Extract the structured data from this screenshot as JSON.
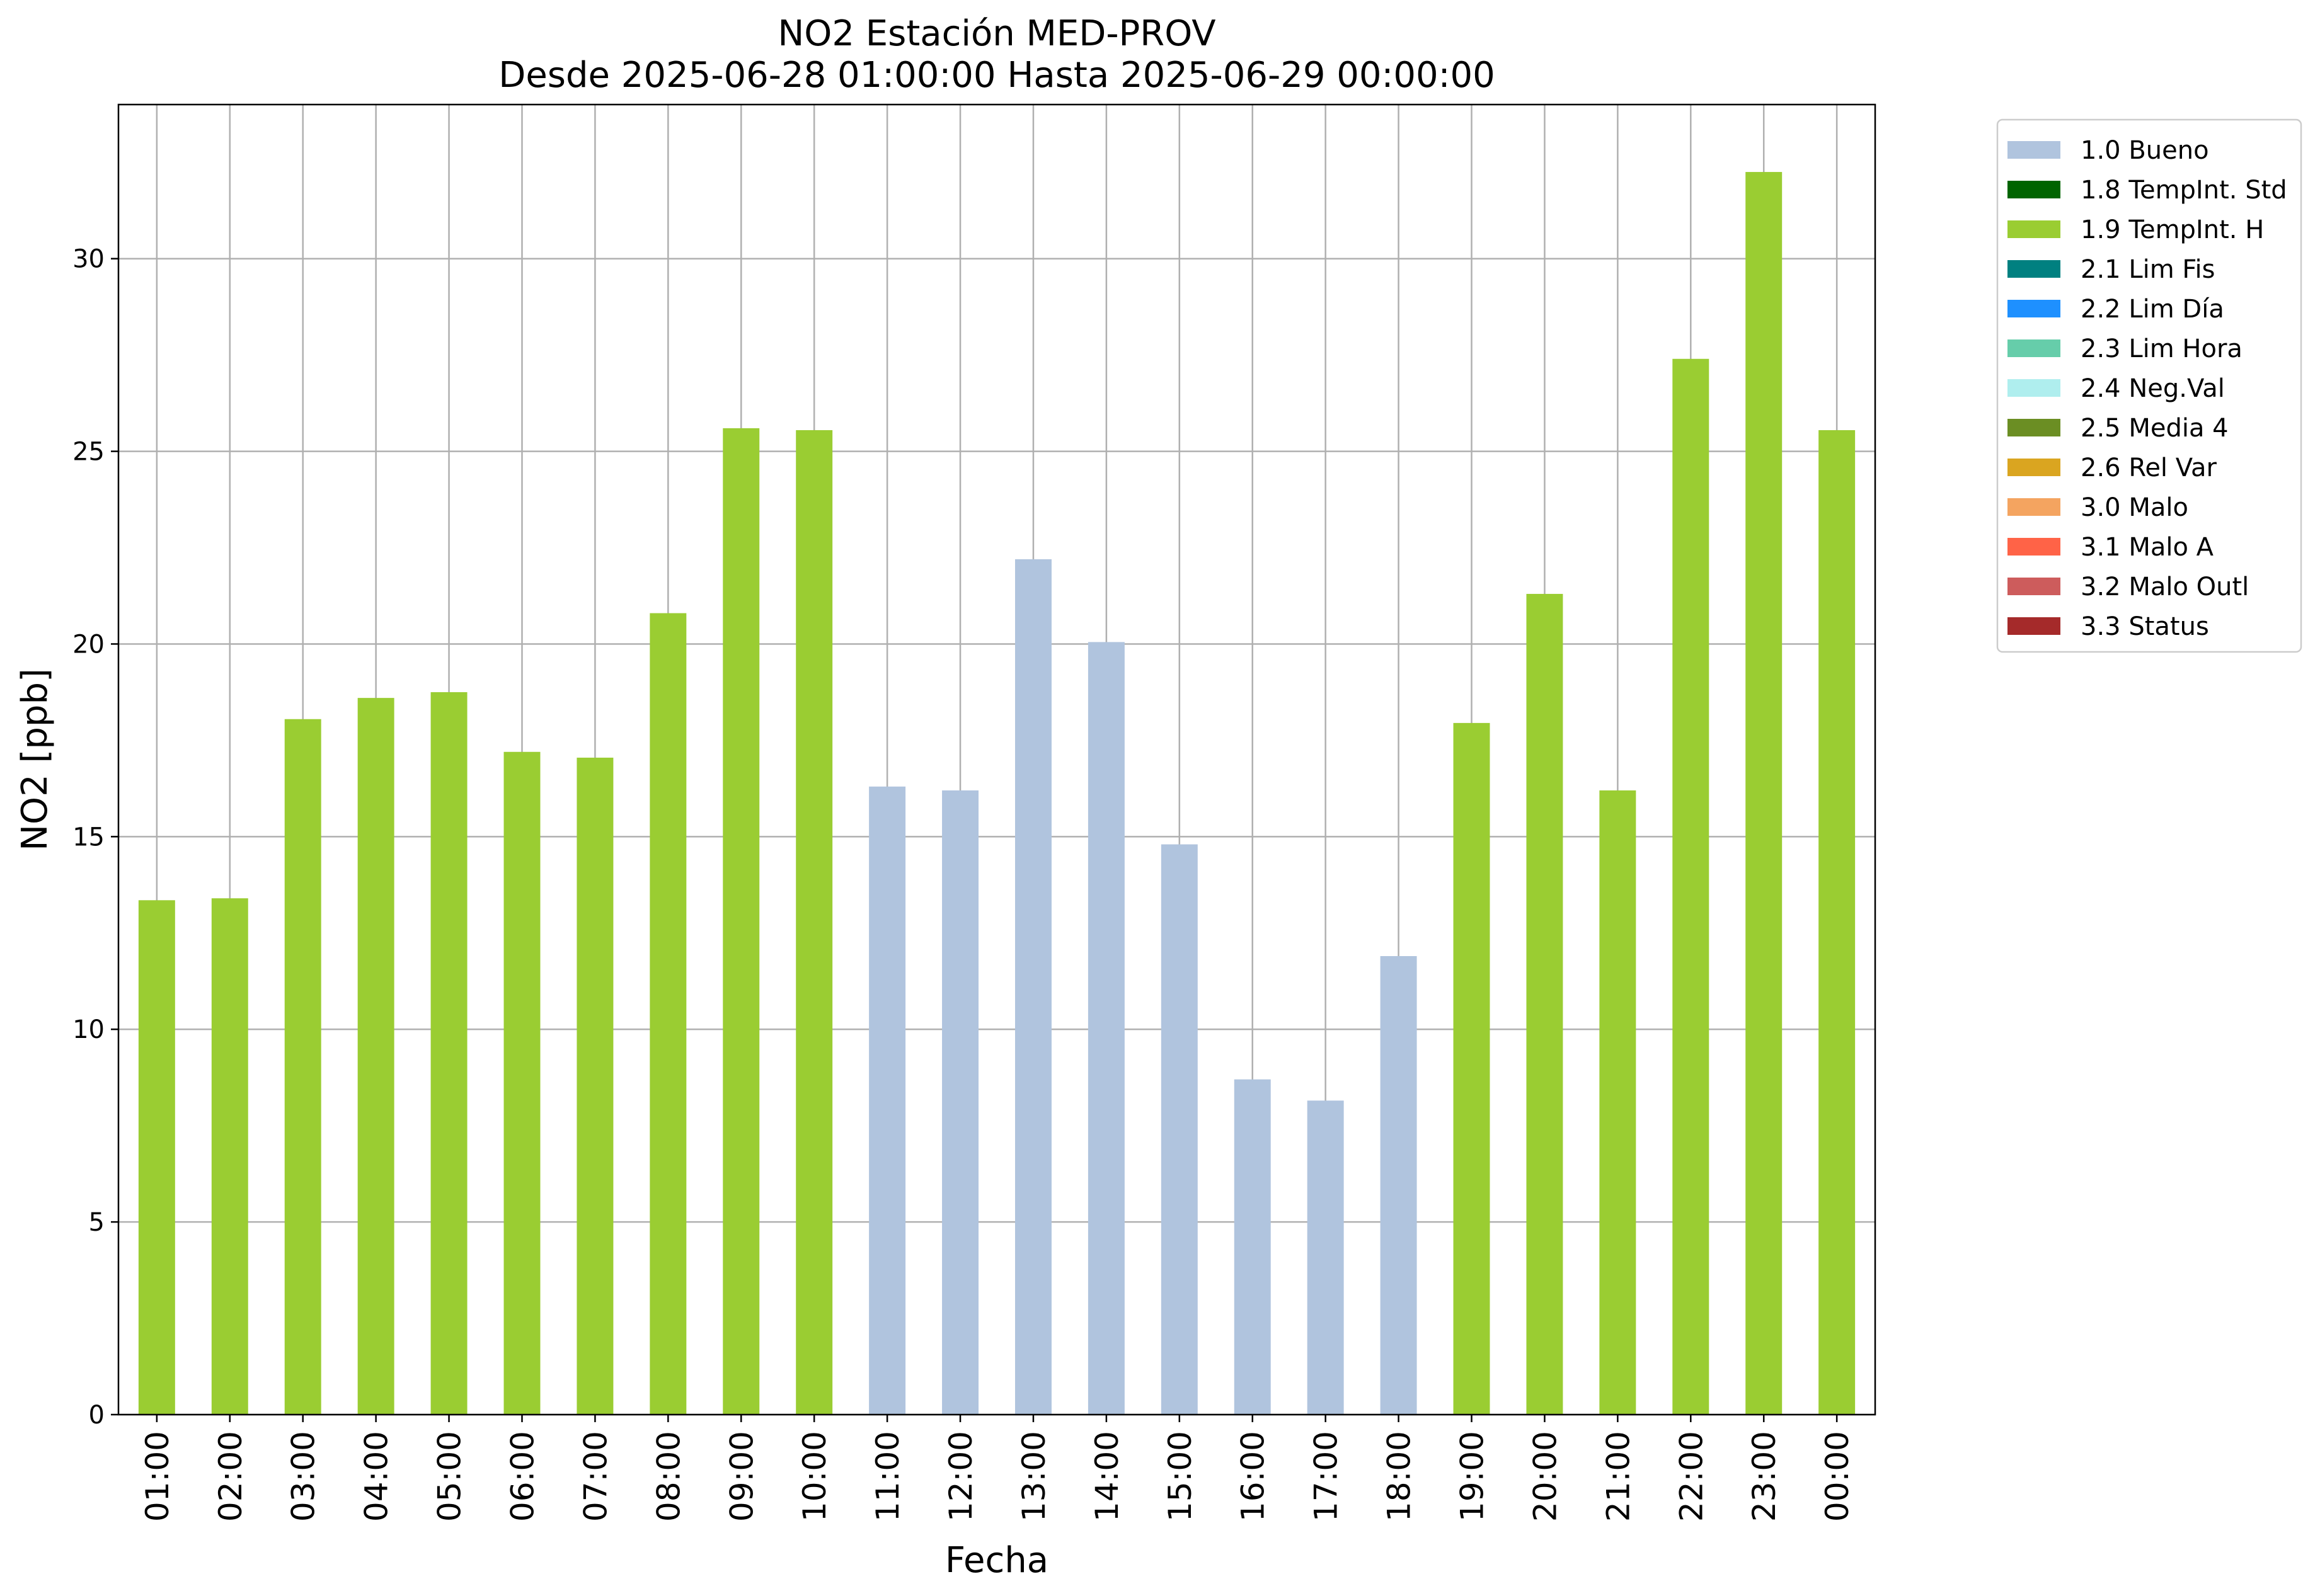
{
  "chart_data": {
    "type": "bar",
    "title": "NO2 Estación MED-PROV",
    "subtitle": "Desde 2025-06-28 01:00:00 Hasta 2025-06-29 00:00:00",
    "xlabel": "Fecha",
    "ylabel": "NO2 [ppb]",
    "ylim": [
      0,
      34
    ],
    "yticks": [
      0,
      5,
      10,
      15,
      20,
      25,
      30
    ],
    "grid": true,
    "legend_position": "outside-top-right",
    "categories": [
      "01:00",
      "02:00",
      "03:00",
      "04:00",
      "05:00",
      "06:00",
      "07:00",
      "08:00",
      "09:00",
      "10:00",
      "11:00",
      "12:00",
      "13:00",
      "14:00",
      "15:00",
      "16:00",
      "17:00",
      "18:00",
      "19:00",
      "20:00",
      "21:00",
      "22:00",
      "23:00",
      "00:00"
    ],
    "values": [
      13.35,
      13.4,
      18.05,
      18.6,
      18.75,
      17.2,
      17.05,
      20.8,
      25.6,
      25.55,
      16.3,
      16.2,
      22.2,
      20.05,
      14.8,
      8.7,
      8.15,
      11.9,
      17.95,
      21.3,
      16.2,
      27.4,
      32.25,
      25.55
    ],
    "quality": [
      "1.9",
      "1.9",
      "1.9",
      "1.9",
      "1.9",
      "1.9",
      "1.9",
      "1.9",
      "1.9",
      "1.9",
      "1.0",
      "1.0",
      "1.0",
      "1.0",
      "1.0",
      "1.0",
      "1.0",
      "1.0",
      "1.9",
      "1.9",
      "1.9",
      "1.9",
      "1.9",
      "1.9"
    ],
    "legend": [
      {
        "code": "1.0",
        "label": "1.0 Bueno",
        "color": "#b0c4de"
      },
      {
        "code": "1.8",
        "label": "1.8 TempInt. Std",
        "color": "#006400"
      },
      {
        "code": "1.9",
        "label": "1.9 TempInt. H",
        "color": "#9acd32"
      },
      {
        "code": "2.1",
        "label": "2.1 Lim Fis",
        "color": "#008080"
      },
      {
        "code": "2.2",
        "label": "2.2 Lim Día",
        "color": "#1e90ff"
      },
      {
        "code": "2.3",
        "label": "2.3 Lim Hora",
        "color": "#66cdaa"
      },
      {
        "code": "2.4",
        "label": "2.4 Neg.Val",
        "color": "#afeeee"
      },
      {
        "code": "2.5",
        "label": "2.5 Media 4",
        "color": "#6b8e23"
      },
      {
        "code": "2.6",
        "label": "2.6 Rel Var",
        "color": "#daa520"
      },
      {
        "code": "3.0",
        "label": "3.0 Malo",
        "color": "#f4a460"
      },
      {
        "code": "3.1",
        "label": "3.1 Malo A",
        "color": "#ff6347"
      },
      {
        "code": "3.2",
        "label": "3.2 Malo Outl",
        "color": "#cd5c5c"
      },
      {
        "code": "3.3",
        "label": "3.3 Status",
        "color": "#a52a2a"
      }
    ]
  }
}
